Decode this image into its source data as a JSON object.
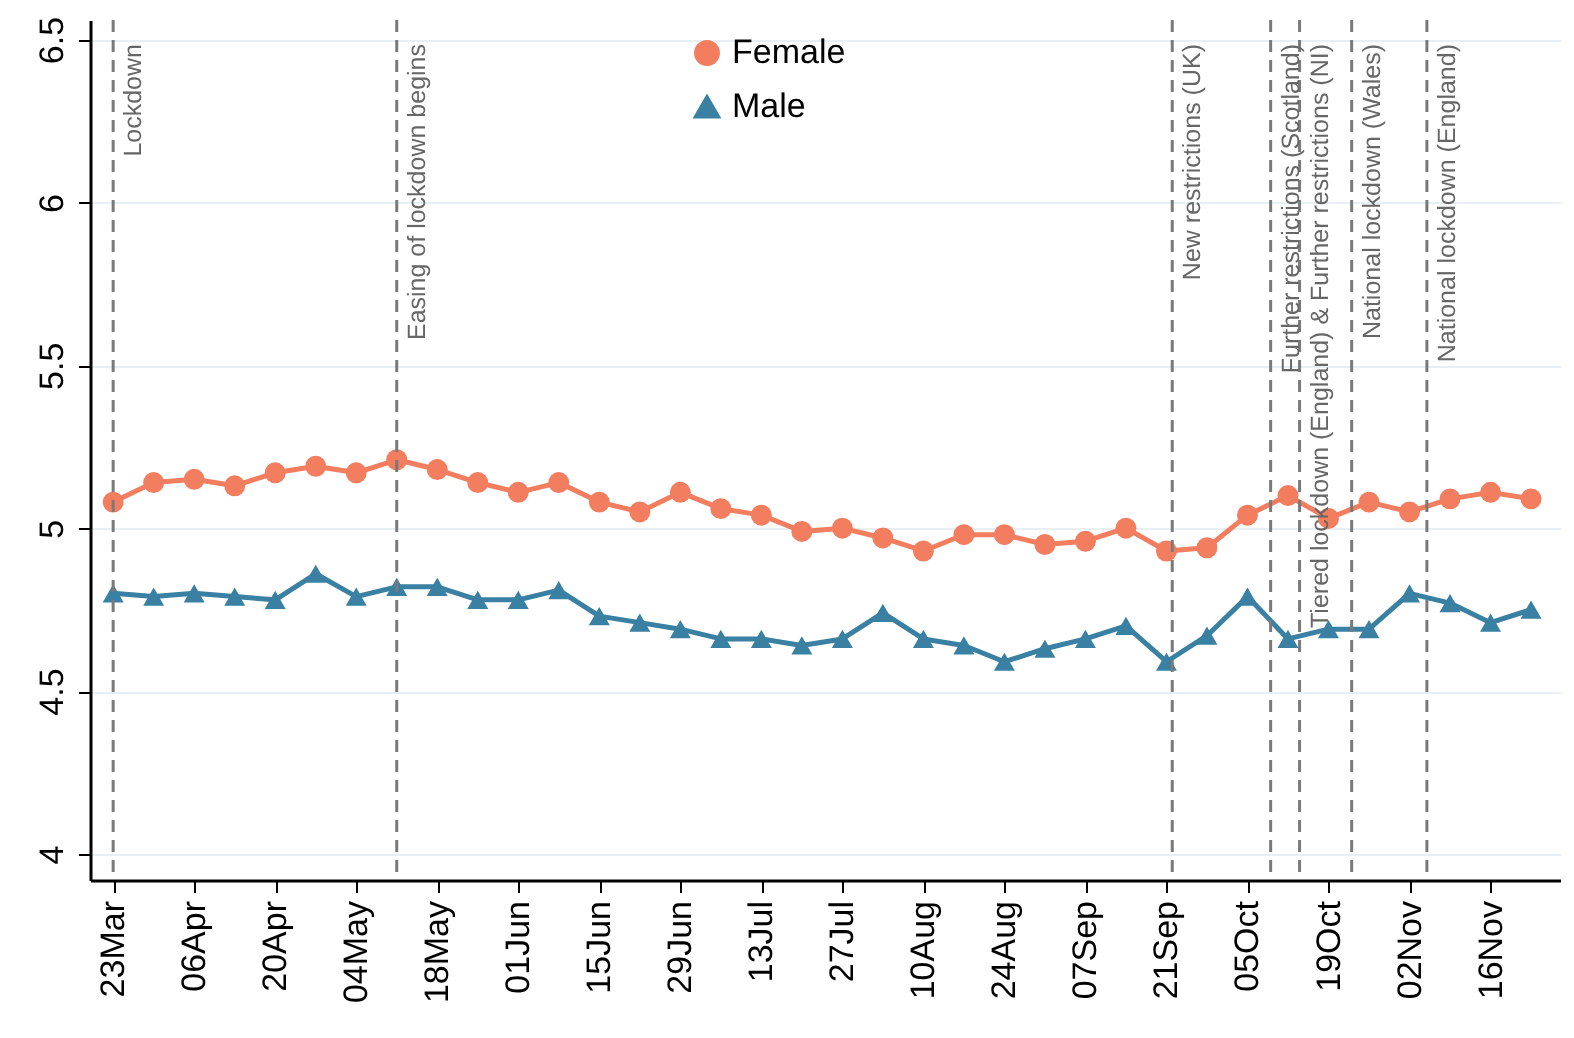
{
  "chart_data": {
    "type": "line",
    "x": [
      "--03-23",
      "--03-30",
      "--04-06",
      "--04-13",
      "--04-20",
      "--04-27",
      "--05-04",
      "--05-11",
      "--05-18",
      "--05-25",
      "--06-01",
      "--06-08",
      "--06-15",
      "--06-22",
      "--06-29",
      "--07-06",
      "--07-13",
      "--07-20",
      "--07-27",
      "--08-03",
      "--08-10",
      "--08-17",
      "--08-24",
      "--08-31",
      "--09-07",
      "--09-14",
      "--09-21",
      "--09-28",
      "--10-05",
      "--10-12",
      "--10-19",
      "--10-26",
      "--11-02",
      "--11-09",
      "--11-16",
      "--11-23"
    ],
    "series": [
      {
        "name": "Female",
        "color": "#f27d5f",
        "marker": "circle",
        "values": [
          5.08,
          5.14,
          5.15,
          5.13,
          5.17,
          5.19,
          5.17,
          5.21,
          5.18,
          5.14,
          5.11,
          5.14,
          5.08,
          5.05,
          5.11,
          5.06,
          5.04,
          4.99,
          5.0,
          4.97,
          4.93,
          4.98,
          4.98,
          4.95,
          4.96,
          5.0,
          4.93,
          4.94,
          5.04,
          5.1,
          5.03,
          5.08,
          5.05,
          5.09,
          5.11,
          5.09
        ]
      },
      {
        "name": "Male",
        "color": "#3a80a2",
        "marker": "triangle",
        "values": [
          4.8,
          4.79,
          4.8,
          4.79,
          4.78,
          4.86,
          4.79,
          4.82,
          4.82,
          4.78,
          4.78,
          4.81,
          4.73,
          4.71,
          4.69,
          4.66,
          4.66,
          4.64,
          4.66,
          4.74,
          4.66,
          4.64,
          4.59,
          4.63,
          4.66,
          4.7,
          4.59,
          4.67,
          4.79,
          4.66,
          4.69,
          4.69,
          4.8,
          4.77,
          4.71,
          4.75
        ]
      }
    ],
    "xlim": [
      "--03-19",
      "--11-28"
    ],
    "xticks": [
      {
        "value": "--03-23",
        "label": "23Mar"
      },
      {
        "value": "--04-06",
        "label": "06Apr"
      },
      {
        "value": "--04-20",
        "label": "20Apr"
      },
      {
        "value": "--05-04",
        "label": "04May"
      },
      {
        "value": "--05-18",
        "label": "18May"
      },
      {
        "value": "--06-01",
        "label": "01Jun"
      },
      {
        "value": "--06-15",
        "label": "15Jun"
      },
      {
        "value": "--06-29",
        "label": "29Jun"
      },
      {
        "value": "--07-13",
        "label": "13Jul"
      },
      {
        "value": "--07-27",
        "label": "27Jul"
      },
      {
        "value": "--08-10",
        "label": "10Aug"
      },
      {
        "value": "--08-24",
        "label": "24Aug"
      },
      {
        "value": "--09-07",
        "label": "07Sep"
      },
      {
        "value": "--09-21",
        "label": "21Sep"
      },
      {
        "value": "--10-05",
        "label": "05Oct"
      },
      {
        "value": "--10-19",
        "label": "19Oct"
      },
      {
        "value": "--11-02",
        "label": "02Nov"
      },
      {
        "value": "--11-16",
        "label": "16Nov"
      }
    ],
    "ylim": [
      3.92,
      6.56
    ],
    "yticks": [
      4,
      4.5,
      5,
      5.5,
      6,
      6.5
    ],
    "grid": "y",
    "legend": "top",
    "line_style": "solid",
    "ref_lines": [
      {
        "axis": "x",
        "value": "--03-23",
        "label": "Lockdown",
        "color": "#7a7a7a",
        "line_style": "dashed"
      },
      {
        "axis": "x",
        "value": "--05-11",
        "label": "Easing of lockdown begins",
        "color": "#7a7a7a",
        "line_style": "dashed"
      },
      {
        "axis": "x",
        "value": "--09-22",
        "label": "New restrictions (UK)",
        "color": "#7a7a7a",
        "line_style": "dashed"
      },
      {
        "axis": "x",
        "value": "--10-09",
        "label": "Further restrictions (Scotland)",
        "color": "#7a7a7a",
        "line_style": "dashed"
      },
      {
        "axis": "x",
        "value": "--10-14",
        "label": "Tiered lockdown (England) & Further restrictions (NI)",
        "color": "#7a7a7a",
        "line_style": "dashed"
      },
      {
        "axis": "x",
        "value": "--10-23",
        "label": "National lockdown (Wales)",
        "color": "#7a7a7a",
        "line_style": "dashed"
      },
      {
        "axis": "x",
        "value": "--11-05",
        "label": "National lockdown (England)",
        "color": "#7a7a7a",
        "line_style": "dashed"
      }
    ]
  }
}
